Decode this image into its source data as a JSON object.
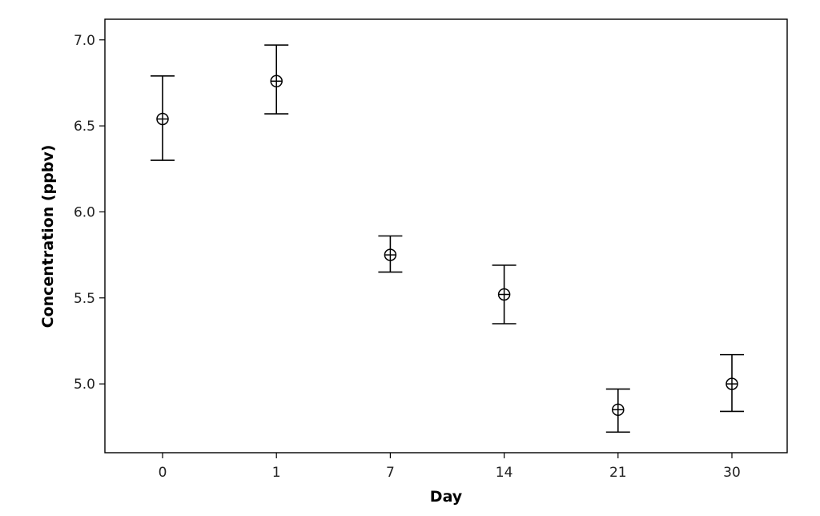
{
  "chart_data": {
    "type": "scatter",
    "title": "",
    "xlabel": "Day",
    "ylabel": "Concentration (ppbv)",
    "categories": [
      "0",
      "1",
      "7",
      "14",
      "21",
      "30"
    ],
    "series": [
      {
        "values": [
          6.54,
          6.76,
          5.75,
          5.52,
          4.85,
          5.0
        ],
        "error_low": [
          6.3,
          6.57,
          5.65,
          5.35,
          4.72,
          4.84
        ],
        "error_high": [
          6.79,
          6.97,
          5.86,
          5.69,
          4.97,
          5.17
        ]
      }
    ],
    "yticks": [
      "5.0",
      "5.5",
      "6.0",
      "6.5",
      "7.0"
    ],
    "ylim": [
      4.6,
      7.12
    ],
    "grid": false,
    "legend": "none",
    "marker": "circle-plus"
  }
}
